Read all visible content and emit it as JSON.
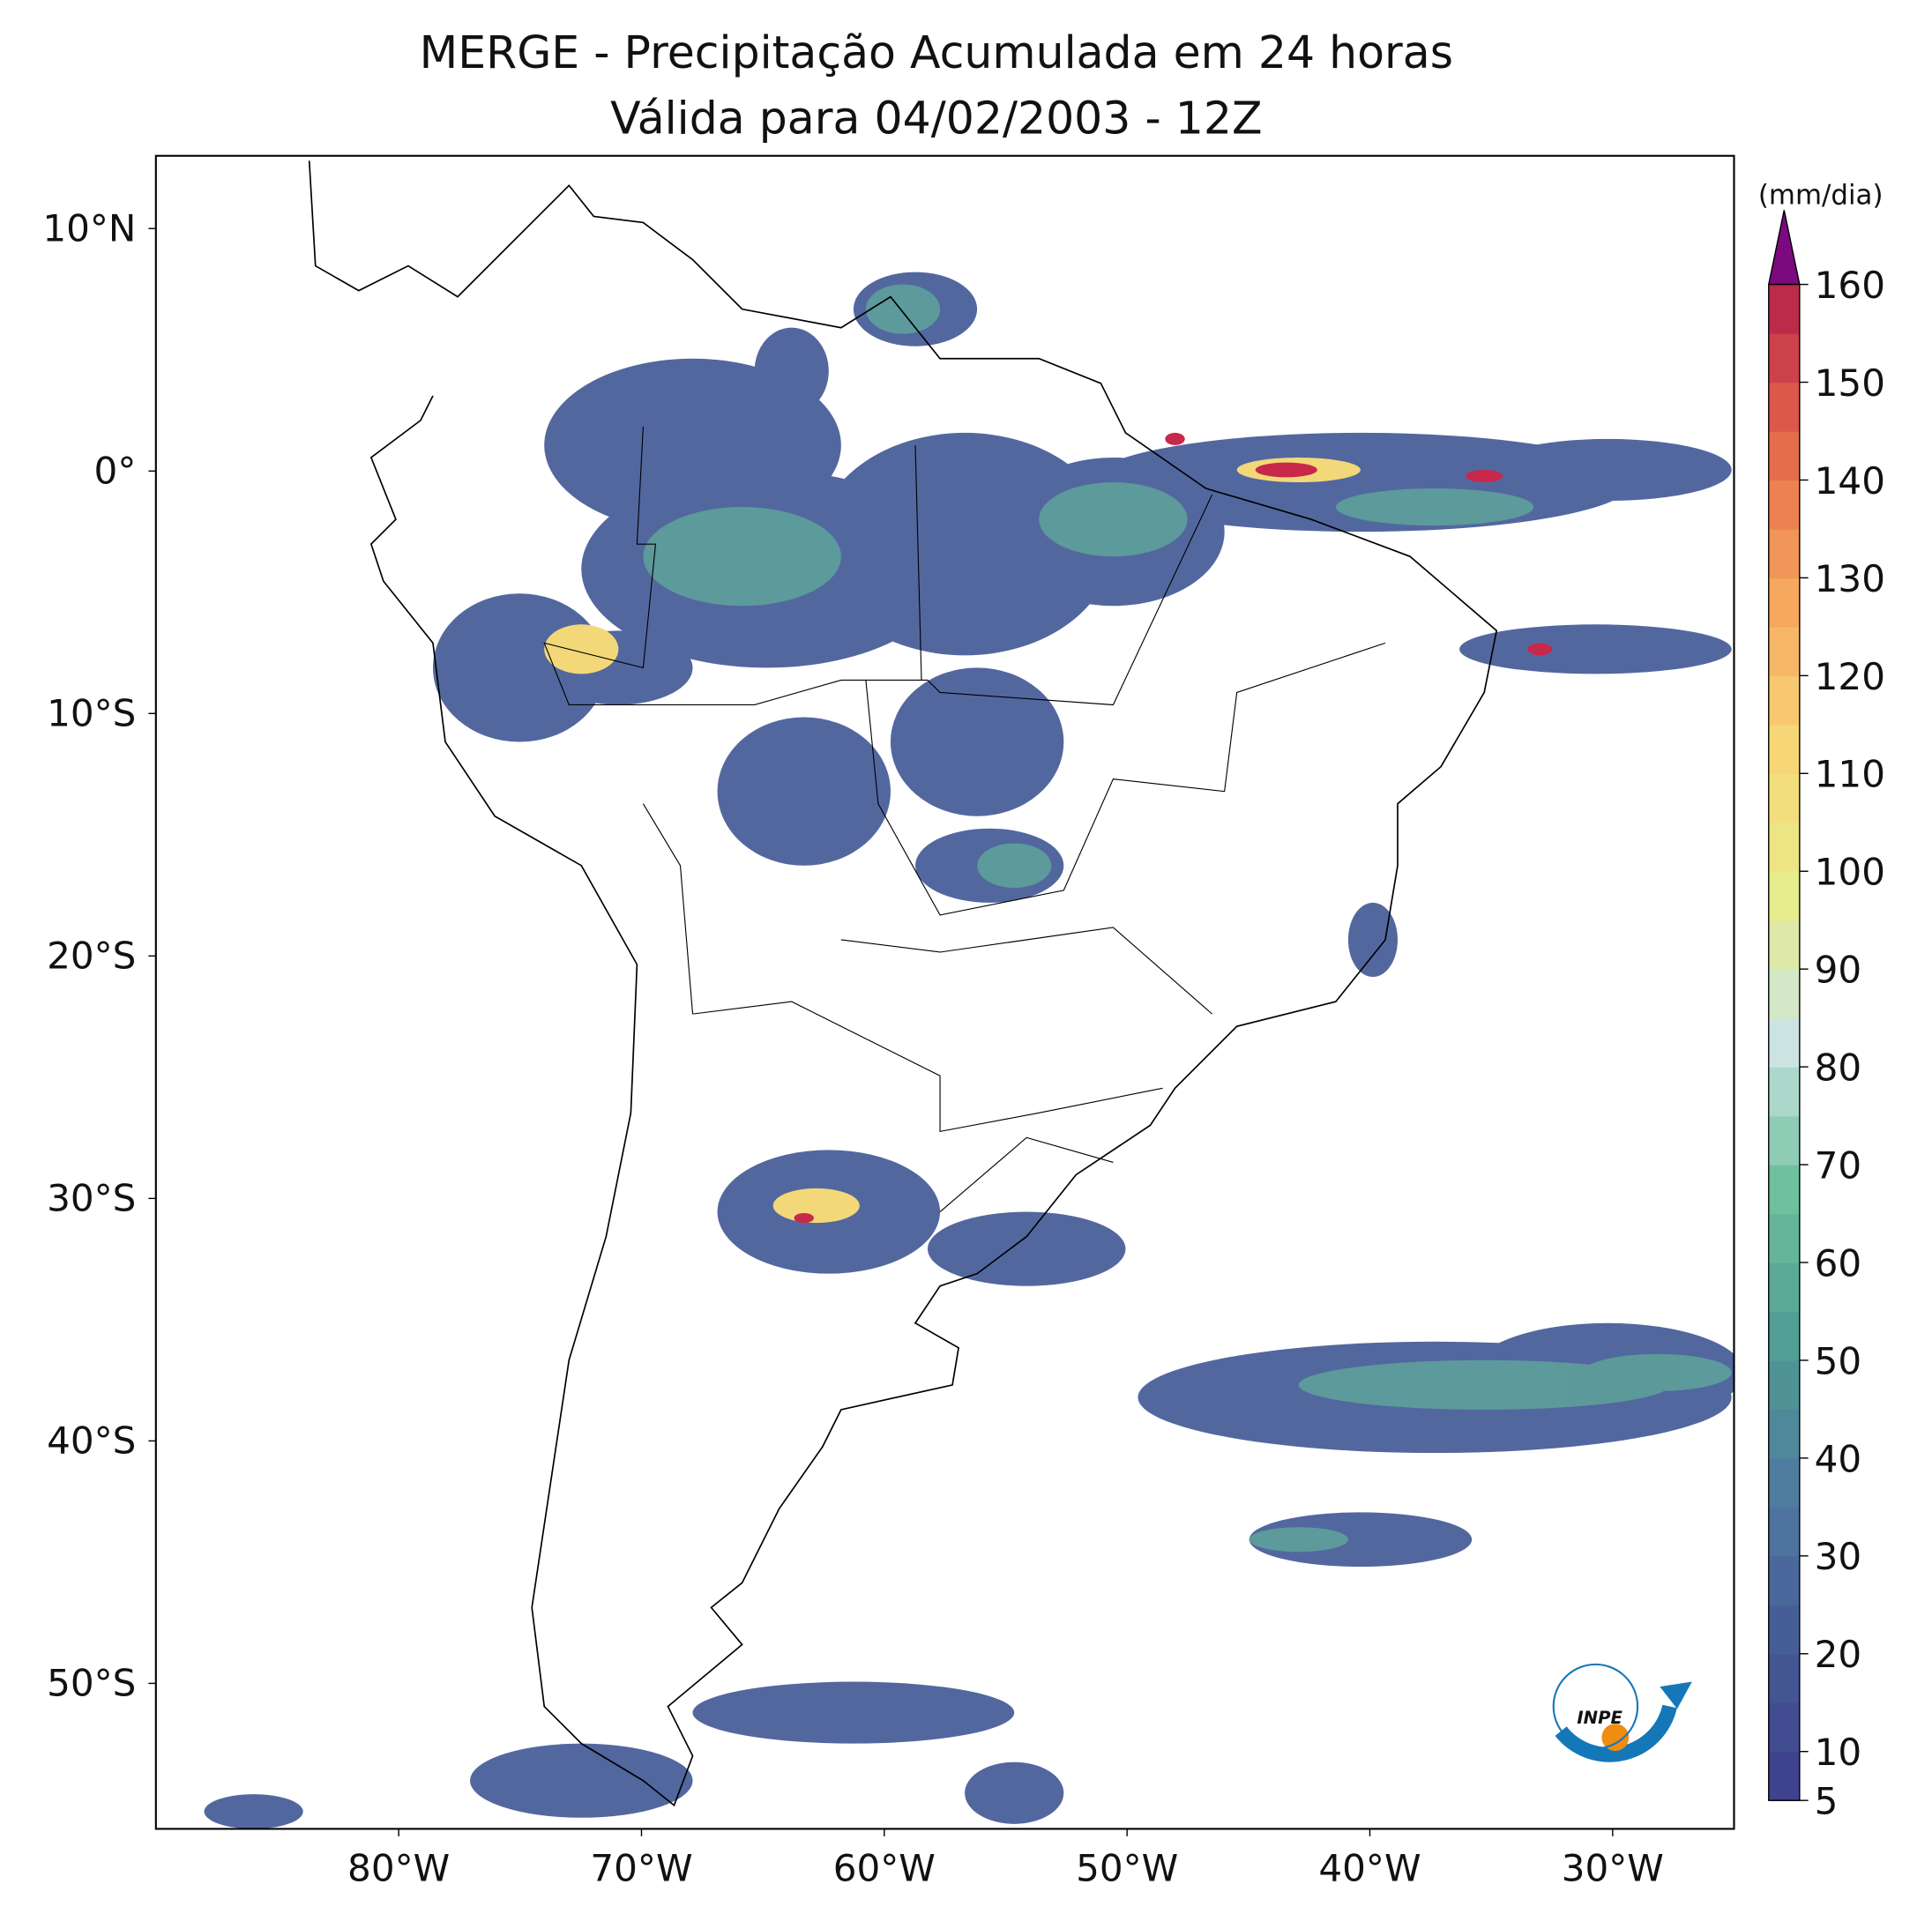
{
  "title": "MERGE - Precipitação Acumulada em 24 horas",
  "subtitle": "Válida para 04/02/2003 - 12Z",
  "map": {
    "lonlim": [
      -90,
      -25
    ],
    "latlim": [
      -56,
      13
    ],
    "lon_ticks": [
      {
        "value": -80,
        "label": "80°W"
      },
      {
        "value": -70,
        "label": "70°W"
      },
      {
        "value": -60,
        "label": "60°W"
      },
      {
        "value": -50,
        "label": "50°W"
      },
      {
        "value": -40,
        "label": "40°W"
      },
      {
        "value": -30,
        "label": "30°W"
      }
    ],
    "lat_ticks": [
      {
        "value": 10,
        "label": "10°N"
      },
      {
        "value": 0,
        "label": "0°"
      },
      {
        "value": -10,
        "label": "10°S"
      },
      {
        "value": -20,
        "label": "20°S"
      },
      {
        "value": -30,
        "label": "30°S"
      },
      {
        "value": -40,
        "label": "40°S"
      },
      {
        "value": -50,
        "label": "50°S"
      }
    ]
  },
  "colorbar": {
    "unit": "(mm/dia)",
    "lim": [
      5,
      160
    ],
    "step": 5,
    "ticks": [
      5,
      10,
      20,
      30,
      40,
      50,
      60,
      70,
      80,
      90,
      100,
      110,
      120,
      130,
      140,
      150,
      160
    ],
    "colors": [
      "#3e3f8c",
      "#455a96",
      "#4f7aa0",
      "#4f9c94",
      "#6cbf9c",
      "#cbe4e2",
      "#e8ec8a",
      "#f8d575",
      "#f5a35c",
      "#e4654a",
      "#b5204a"
    ],
    "extend_color": "#7b0a7e"
  },
  "logo": "INPE"
}
